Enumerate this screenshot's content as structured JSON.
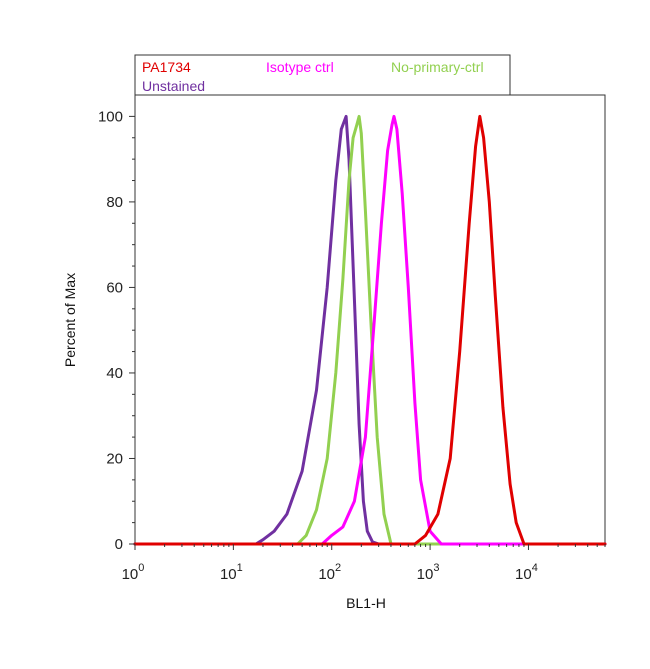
{
  "chart_data": {
    "type": "line",
    "title": "",
    "xlabel": "BL1-H",
    "ylabel": "Percent of Max",
    "x_scale": "log",
    "xlim": [
      1,
      60000
    ],
    "ylim": [
      0,
      105
    ],
    "grid": false,
    "legend_position": "top-left",
    "x_ticks": [
      {
        "value": 1,
        "base": "10",
        "exp": "0"
      },
      {
        "value": 10,
        "base": "10",
        "exp": "1"
      },
      {
        "value": 100,
        "base": "10",
        "exp": "2"
      },
      {
        "value": 1000,
        "base": "10",
        "exp": "3"
      },
      {
        "value": 10000,
        "base": "10",
        "exp": "4"
      }
    ],
    "y_ticks": [
      0,
      20,
      40,
      60,
      80,
      100
    ],
    "series": [
      {
        "name": "Unstained",
        "color": "#7030a0",
        "x": [
          1,
          17,
          20,
          26,
          35,
          50,
          70,
          90,
          110,
          125,
          140,
          150,
          162,
          175,
          190,
          210,
          230,
          260,
          300,
          60000
        ],
        "y": [
          0,
          0,
          1,
          3,
          7,
          17,
          36,
          60,
          85,
          97,
          100,
          90,
          70,
          50,
          28,
          10,
          3,
          0.5,
          0,
          0
        ]
      },
      {
        "name": "No-primary-ctrl",
        "color": "#92d050",
        "x": [
          1,
          45,
          55,
          70,
          90,
          110,
          130,
          150,
          165,
          180,
          190,
          200,
          220,
          250,
          290,
          340,
          400,
          60000
        ],
        "y": [
          0,
          0,
          2,
          8,
          20,
          40,
          62,
          85,
          95,
          98,
          100,
          96,
          78,
          52,
          25,
          7,
          0,
          0
        ]
      },
      {
        "name": "Isotype ctrl",
        "color": "#ff00ff",
        "x": [
          1,
          80,
          100,
          130,
          170,
          220,
          270,
          320,
          370,
          410,
          430,
          460,
          520,
          600,
          700,
          800,
          1000,
          1300,
          60000
        ],
        "y": [
          0,
          0,
          2,
          4,
          10,
          25,
          52,
          75,
          92,
          98,
          100,
          97,
          82,
          60,
          33,
          15,
          3,
          0,
          0
        ]
      },
      {
        "name": "PA1734",
        "color": "#e00000",
        "x": [
          1,
          700,
          900,
          1200,
          1600,
          2000,
          2500,
          2900,
          3200,
          3500,
          4000,
          4600,
          5500,
          6500,
          7500,
          9000,
          60000
        ],
        "y": [
          0,
          0,
          2,
          7,
          20,
          45,
          75,
          93,
          100,
          95,
          80,
          58,
          32,
          14,
          5,
          0,
          0
        ]
      }
    ]
  },
  "legend": {
    "items": [
      {
        "label": "PA1734",
        "color": "#e00000"
      },
      {
        "label": "Isotype ctrl",
        "color": "#ff00ff"
      },
      {
        "label": "No-primary-ctrl",
        "color": "#92d050"
      },
      {
        "label": "Unstained",
        "color": "#7030a0"
      }
    ]
  }
}
